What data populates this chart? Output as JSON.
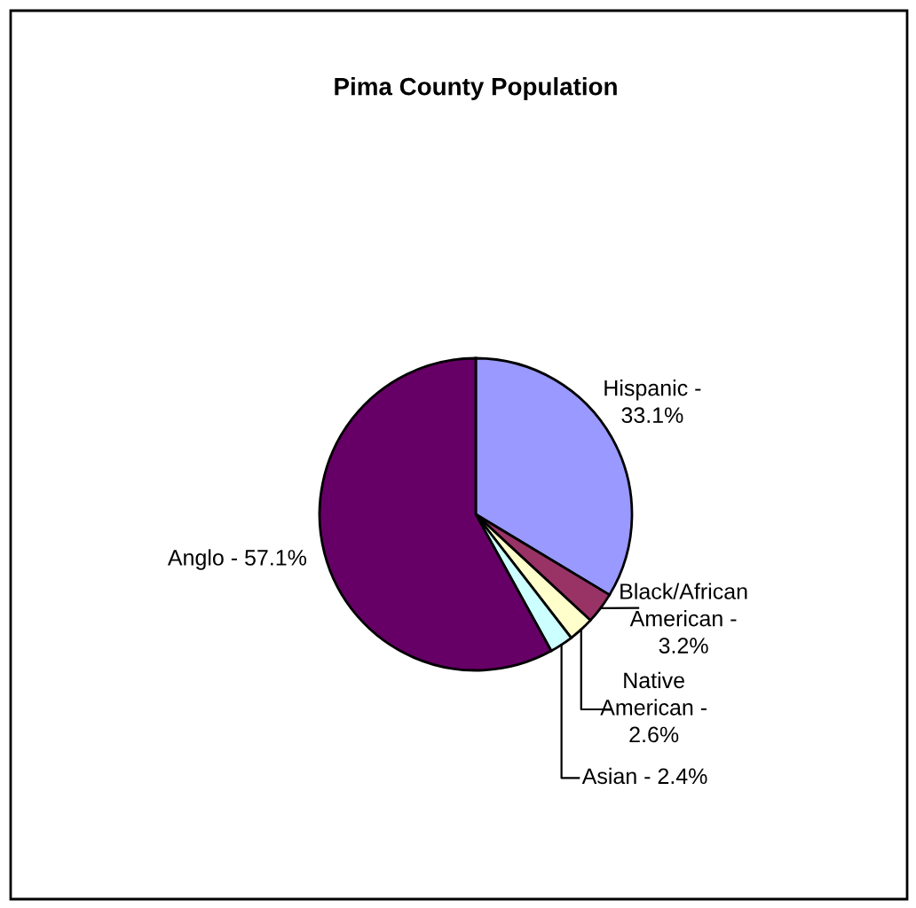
{
  "chart_data": {
    "type": "pie",
    "title": "Pima County Population",
    "categories": [
      "Hispanic -\n33.1%",
      "Black/African\nAmerican -\n3.2%",
      "Native\nAmerican -\n2.6%",
      "Asian - 2.4%",
      "Anglo - 57.1%"
    ],
    "values": [
      33.1,
      3.2,
      2.6,
      2.4,
      57.1
    ],
    "colors": [
      "#9999ff",
      "#993366",
      "#ffffcc",
      "#ccffff",
      "#660066"
    ],
    "legend": false
  }
}
